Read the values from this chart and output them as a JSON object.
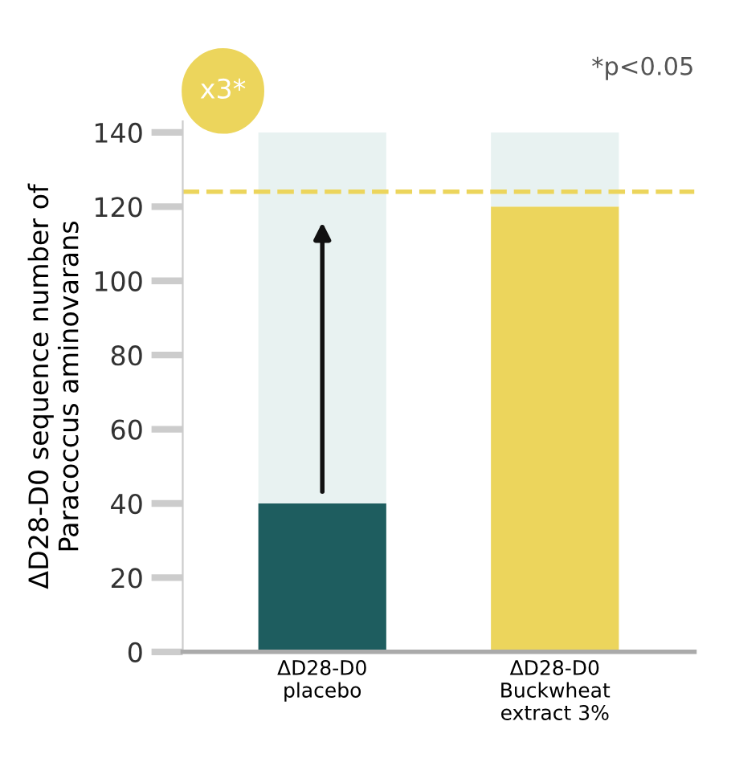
{
  "chart_data": {
    "type": "bar",
    "stacked": true,
    "ylabel": "ΔD28-D0 sequence number of\nParacoccus aminovarans",
    "categories": [
      "ΔD28-D0\nplacebo",
      "ΔD28-D0\nBuckwheat\nextract 3%"
    ],
    "series": [
      {
        "colors": [
          "#1e5d5f",
          "#ecd55c"
        ],
        "values": [
          40,
          120
        ]
      },
      {
        "color": "#e8f2f1",
        "values": [
          100,
          20
        ]
      }
    ],
    "ylim": [
      0,
      143
    ],
    "yticks": [
      0,
      20,
      40,
      60,
      80,
      100,
      120,
      140
    ],
    "grid": false,
    "legend": false,
    "ref_lines": [
      {
        "axis": "y",
        "value": 124,
        "color": "#ecd55c",
        "line_style": "dashed"
      }
    ],
    "annotations": [
      "x3*",
      "*p<0.05"
    ]
  }
}
